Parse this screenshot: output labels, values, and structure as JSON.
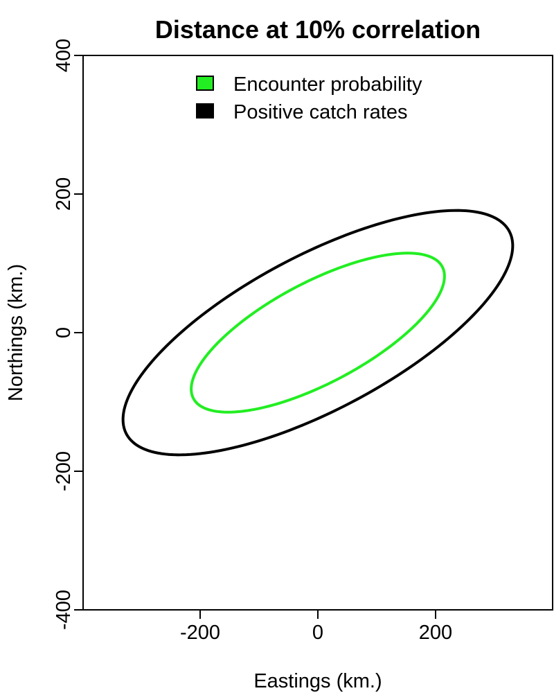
{
  "chart_data": {
    "type": "line",
    "title": "Distance at 10% correlation",
    "xlabel": "Eastings (km.)",
    "ylabel": "Northings (km.)",
    "xlim": [
      -400,
      400
    ],
    "ylim": [
      -400,
      400
    ],
    "x_ticks": [
      -200,
      0,
      200
    ],
    "y_ticks": [
      -400,
      -200,
      0,
      200,
      400
    ],
    "x_tick_labels": [
      "-200",
      "0",
      "200"
    ],
    "y_tick_labels": [
      "-400",
      "-200",
      "0",
      "200",
      "400"
    ],
    "grid": false,
    "legend_position": "top",
    "series": [
      {
        "name": "Encounter probability",
        "color": "#22ee22",
        "ellipse": {
          "center": [
            0,
            0
          ],
          "semi_major": 232,
          "semi_minor": 75,
          "angle_deg": 23.3
        }
      },
      {
        "name": "Positive catch rates",
        "color": "#000000",
        "ellipse": {
          "center": [
            0,
            0
          ],
          "semi_major": 357,
          "semi_minor": 115,
          "angle_deg": 23.3
        }
      }
    ]
  }
}
